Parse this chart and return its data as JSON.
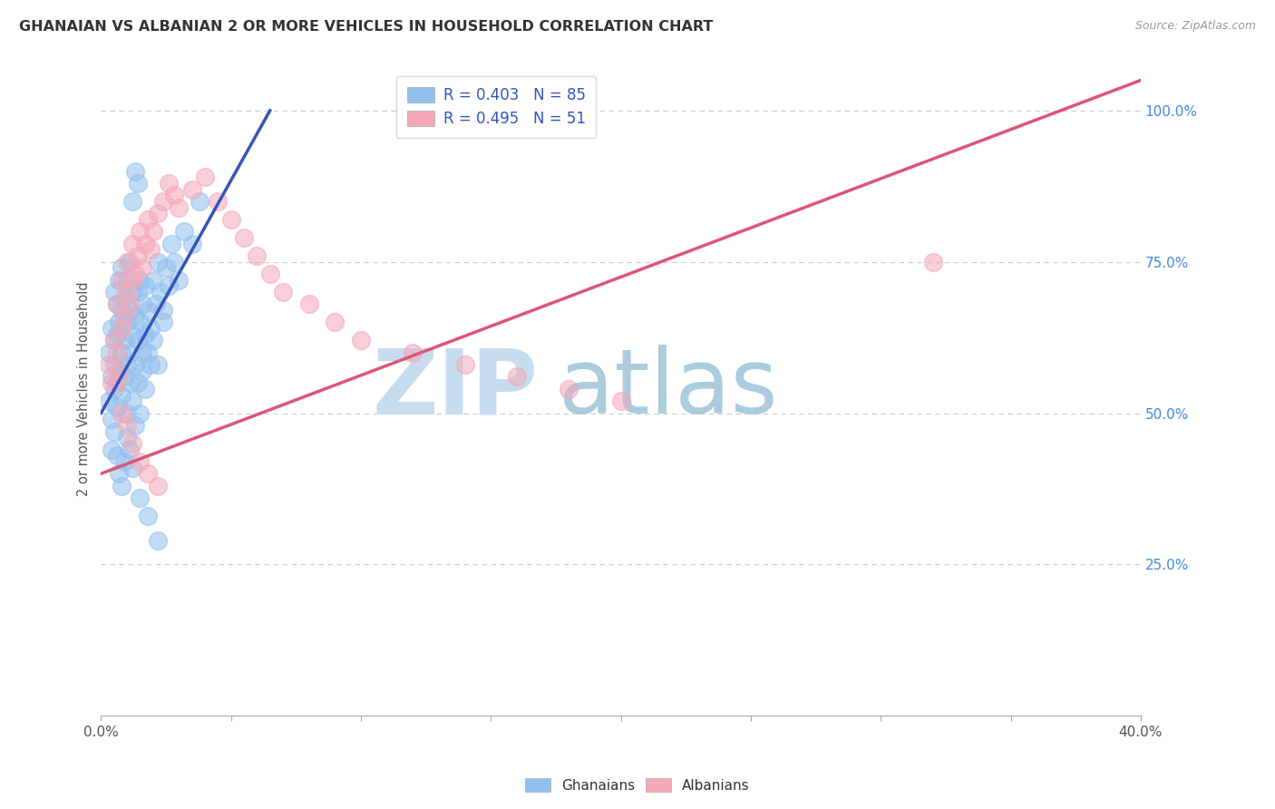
{
  "title": "GHANAIAN VS ALBANIAN 2 OR MORE VEHICLES IN HOUSEHOLD CORRELATION CHART",
  "source": "Source: ZipAtlas.com",
  "ylabel": "2 or more Vehicles in Household",
  "xlim": [
    0.0,
    0.4
  ],
  "ylim": [
    0.0,
    1.08
  ],
  "ytick_positions": [
    0.25,
    0.5,
    0.75,
    1.0
  ],
  "ytick_labels": [
    "25.0%",
    "50.0%",
    "75.0%",
    "100.0%"
  ],
  "legend_blue_label": "R = 0.403   N = 85",
  "legend_pink_label": "R = 0.495   N = 51",
  "ghanaian_color": "#92C0EE",
  "albanian_color": "#F4A8B8",
  "blue_line_color": "#3355BB",
  "pink_line_color": "#DD5577",
  "grid_color": "#CCCCCC",
  "background_color": "#FFFFFF",
  "blue_line_x": [
    0.0,
    0.065
  ],
  "blue_line_y": [
    0.5,
    1.0
  ],
  "pink_line_x": [
    0.0,
    0.4
  ],
  "pink_line_y": [
    0.4,
    1.05
  ],
  "gh_x": [
    0.003,
    0.004,
    0.004,
    0.005,
    0.005,
    0.005,
    0.006,
    0.006,
    0.006,
    0.007,
    0.007,
    0.007,
    0.008,
    0.008,
    0.008,
    0.009,
    0.009,
    0.01,
    0.01,
    0.01,
    0.011,
    0.011,
    0.011,
    0.012,
    0.012,
    0.013,
    0.013,
    0.014,
    0.014,
    0.015,
    0.015,
    0.016,
    0.016,
    0.017,
    0.017,
    0.018,
    0.019,
    0.02,
    0.021,
    0.022,
    0.023,
    0.024,
    0.025,
    0.026,
    0.027,
    0.028,
    0.03,
    0.032,
    0.035,
    0.038,
    0.003,
    0.004,
    0.005,
    0.006,
    0.007,
    0.008,
    0.009,
    0.01,
    0.011,
    0.012,
    0.013,
    0.014,
    0.015,
    0.016,
    0.017,
    0.018,
    0.019,
    0.02,
    0.022,
    0.024,
    0.004,
    0.005,
    0.006,
    0.007,
    0.008,
    0.009,
    0.01,
    0.011,
    0.012,
    0.015,
    0.018,
    0.022,
    0.012,
    0.013,
    0.014
  ],
  "gh_y": [
    0.6,
    0.56,
    0.64,
    0.58,
    0.62,
    0.7,
    0.55,
    0.63,
    0.68,
    0.57,
    0.65,
    0.72,
    0.6,
    0.67,
    0.74,
    0.62,
    0.69,
    0.58,
    0.65,
    0.72,
    0.6,
    0.67,
    0.75,
    0.63,
    0.7,
    0.58,
    0.66,
    0.62,
    0.7,
    0.65,
    0.72,
    0.6,
    0.68,
    0.63,
    0.71,
    0.67,
    0.64,
    0.72,
    0.68,
    0.75,
    0.7,
    0.67,
    0.74,
    0.71,
    0.78,
    0.75,
    0.72,
    0.8,
    0.78,
    0.85,
    0.52,
    0.49,
    0.54,
    0.51,
    0.57,
    0.53,
    0.56,
    0.5,
    0.55,
    0.52,
    0.48,
    0.55,
    0.5,
    0.57,
    0.54,
    0.6,
    0.58,
    0.62,
    0.58,
    0.65,
    0.44,
    0.47,
    0.43,
    0.4,
    0.38,
    0.42,
    0.46,
    0.44,
    0.41,
    0.36,
    0.33,
    0.29,
    0.85,
    0.9,
    0.88
  ],
  "al_x": [
    0.003,
    0.004,
    0.005,
    0.006,
    0.006,
    0.007,
    0.008,
    0.008,
    0.009,
    0.01,
    0.01,
    0.011,
    0.012,
    0.012,
    0.013,
    0.014,
    0.015,
    0.016,
    0.017,
    0.018,
    0.019,
    0.02,
    0.022,
    0.024,
    0.026,
    0.028,
    0.03,
    0.035,
    0.04,
    0.045,
    0.05,
    0.055,
    0.06,
    0.065,
    0.07,
    0.08,
    0.09,
    0.1,
    0.12,
    0.14,
    0.16,
    0.18,
    0.2,
    0.32,
    0.008,
    0.01,
    0.012,
    0.015,
    0.018,
    0.022,
    0.006
  ],
  "al_y": [
    0.58,
    0.55,
    0.62,
    0.6,
    0.68,
    0.57,
    0.64,
    0.72,
    0.66,
    0.7,
    0.75,
    0.68,
    0.72,
    0.78,
    0.73,
    0.76,
    0.8,
    0.74,
    0.78,
    0.82,
    0.77,
    0.8,
    0.83,
    0.85,
    0.88,
    0.86,
    0.84,
    0.87,
    0.89,
    0.85,
    0.82,
    0.79,
    0.76,
    0.73,
    0.7,
    0.68,
    0.65,
    0.62,
    0.6,
    0.58,
    0.56,
    0.54,
    0.52,
    0.75,
    0.5,
    0.48,
    0.45,
    0.42,
    0.4,
    0.38,
    0.55
  ]
}
